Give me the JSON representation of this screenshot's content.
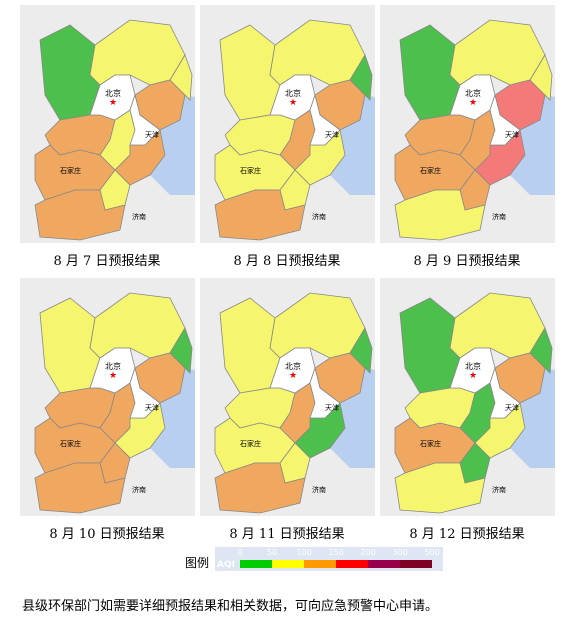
{
  "panels": [
    {
      "caption": "8 月 7 日预报结果",
      "colors": [
        "#4cbf4c",
        "#f5f56e",
        "#f0a860",
        "#f5f56e",
        "#f0a860",
        "#f5f56e",
        "#f0a860",
        "#f0a860",
        "#f5f56e",
        "#f0a860"
      ]
    },
    {
      "caption": "8 月 8 日预报结果",
      "colors": [
        "#f5f56e",
        "#f5f56e",
        "#f0a860",
        "#4cbf4c",
        "#f5f56e",
        "#f0a860",
        "#f5f56e",
        "#f5f56e",
        "#f5f56e",
        "#f0a860"
      ]
    },
    {
      "caption": "8 月 9 日预报结果",
      "colors": [
        "#4cbf4c",
        "#f5f56e",
        "#f47a7a",
        "#f5f56e",
        "#f0a860",
        "#f0a860",
        "#f47a7a",
        "#f0a860",
        "#f0a860",
        "#f5f56e"
      ]
    },
    {
      "caption": "8 月 10 日预报结果",
      "colors": [
        "#f5f56e",
        "#f5f56e",
        "#f0a860",
        "#4cbf4c",
        "#f0a860",
        "#f0a860",
        "#f5f56e",
        "#f0a860",
        "#f0a860",
        "#f0a860"
      ]
    },
    {
      "caption": "8 月 11 日预报结果",
      "colors": [
        "#f5f56e",
        "#f5f56e",
        "#f0a860",
        "#4cbf4c",
        "#f5f56e",
        "#f0a860",
        "#4cbf4c",
        "#f5f56e",
        "#f5f56e",
        "#f0a860"
      ]
    },
    {
      "caption": "8 月 12 日预报结果",
      "colors": [
        "#4cbf4c",
        "#f5f56e",
        "#f0a860",
        "#4cbf4c",
        "#f5f56e",
        "#4cbf4c",
        "#f5f56e",
        "#f0a860",
        "#4cbf4c",
        "#f5f56e"
      ]
    }
  ],
  "map_labels": {
    "beijing": "北京",
    "tianjin": "天津",
    "shijiazhuang": "石家庄",
    "jinan": "济南"
  },
  "legend": {
    "title": "图例",
    "scale_name": "AQI",
    "ticks": [
      0,
      50,
      100,
      150,
      200,
      300,
      500
    ],
    "colors": [
      "#00cc00",
      "#ffff00",
      "#ff9900",
      "#ff0000",
      "#99004c",
      "#7e0023"
    ]
  },
  "footer": "县级环保部门如需要详细预报结果和相关数据，可向应急预警中心申请。"
}
